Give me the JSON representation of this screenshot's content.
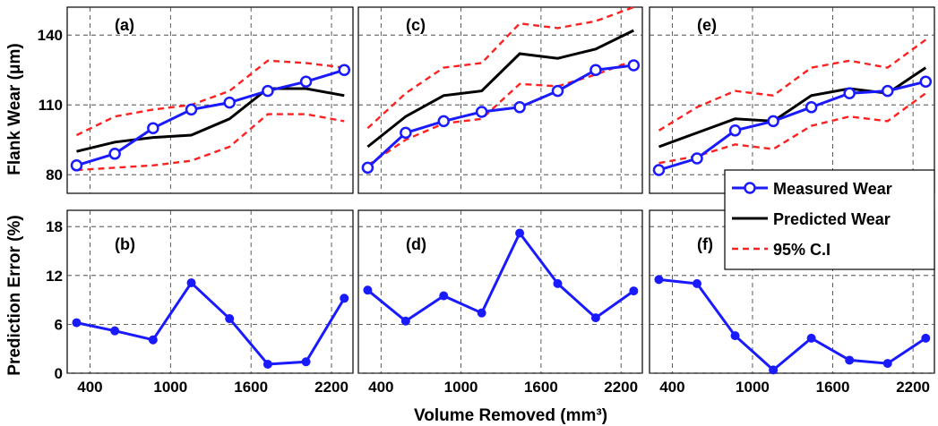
{
  "chart_data": {
    "type": "line",
    "xlabel": "Volume Removed (mm³)",
    "ylabel_top": "Flank Wear (μm)",
    "ylabel_bottom": "Prediction Error (%)",
    "x": [
      300,
      585,
      870,
      1155,
      1440,
      1725,
      2010,
      2295
    ],
    "xlim": [
      230,
      2360
    ],
    "xticks": [
      400,
      1000,
      1600,
      2200
    ],
    "top_ylim": [
      72,
      152
    ],
    "top_yticks": [
      80,
      110,
      140
    ],
    "bottom_ylim": [
      0,
      20
    ],
    "bottom_yticks": [
      0,
      6,
      12,
      18
    ],
    "grid": true,
    "legend": {
      "position": "inside panel (e), bottom-right",
      "entries": [
        {
          "label": "Measured Wear",
          "color": "#1a1aff",
          "style": "line-circle"
        },
        {
          "label": "Predicted Wear",
          "color": "#000000",
          "style": "line"
        },
        {
          "label": "95% C.I",
          "color": "#ff2020",
          "style": "dashed"
        }
      ]
    },
    "panels": [
      {
        "label": "(a)",
        "kind": "wear",
        "measured": [
          84,
          89,
          100,
          108,
          111,
          116,
          120,
          125
        ],
        "predicted": [
          90,
          94,
          96,
          97,
          104,
          117,
          117,
          114
        ],
        "ci_upper": [
          97,
          105,
          108,
          110,
          116,
          129,
          128,
          126
        ],
        "ci_lower": [
          82,
          83,
          84,
          86,
          92,
          106,
          106,
          103
        ]
      },
      {
        "label": "(b)",
        "kind": "error",
        "error": [
          6.2,
          5.2,
          4.1,
          11.1,
          6.7,
          1.1,
          1.4,
          9.2
        ]
      },
      {
        "label": "(c)",
        "kind": "wear",
        "measured": [
          83,
          98,
          103,
          107,
          109,
          116,
          125,
          127
        ],
        "predicted": [
          92,
          105,
          114,
          116,
          132,
          130,
          134,
          142
        ],
        "ci_upper": [
          100,
          115,
          126,
          128,
          145,
          143,
          146,
          152
        ],
        "ci_lower": [
          84,
          95,
          102,
          104,
          119,
          118,
          123,
          129
        ]
      },
      {
        "label": "(d)",
        "kind": "error",
        "error": [
          10.2,
          6.4,
          9.5,
          7.4,
          17.2,
          11.0,
          6.8,
          10.1
        ]
      },
      {
        "label": "(e)",
        "kind": "wear",
        "measured": [
          82,
          87,
          99,
          103,
          109,
          115,
          116,
          120
        ],
        "predicted": [
          92,
          98,
          104,
          103,
          114,
          117,
          115,
          126
        ],
        "ci_upper": [
          99,
          109,
          116,
          114,
          126,
          129,
          126,
          138
        ],
        "ci_lower": [
          85,
          88,
          93,
          91,
          101,
          105,
          103,
          115
        ]
      },
      {
        "label": "(f)",
        "kind": "error",
        "error": [
          11.5,
          11.0,
          4.6,
          0.4,
          4.3,
          1.6,
          1.2,
          4.3
        ]
      }
    ]
  }
}
